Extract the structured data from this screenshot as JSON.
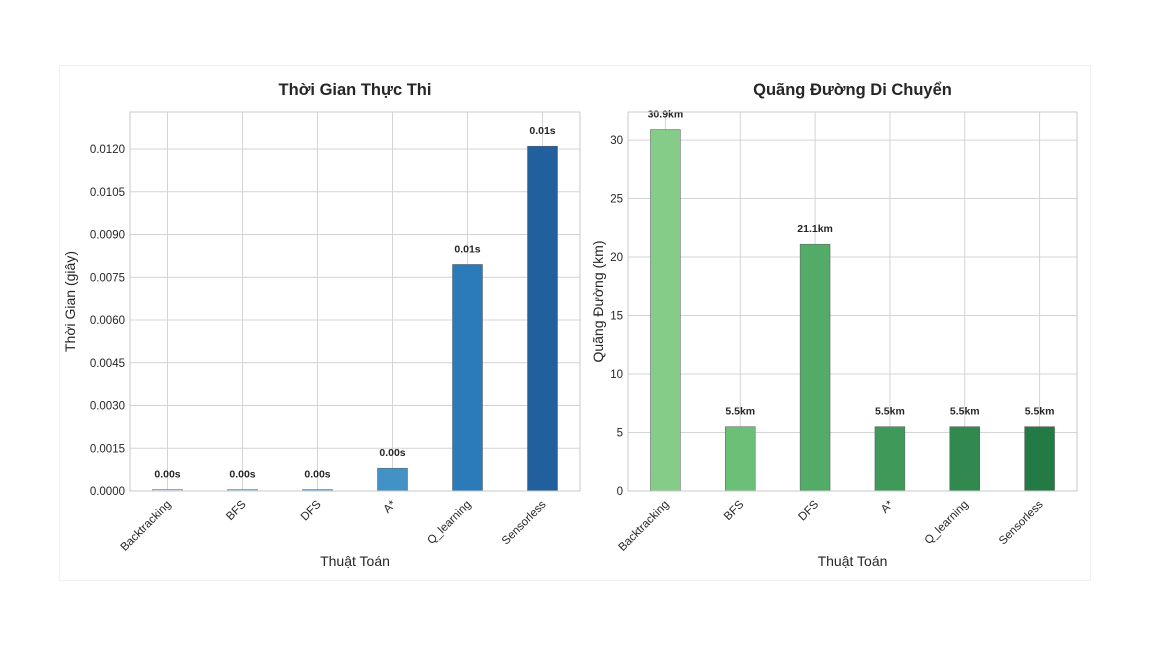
{
  "chart_data": [
    {
      "type": "bar",
      "title": "Thời Gian Thực Thi",
      "xlabel": "Thuật Toán",
      "ylabel": "Thời Gian (giây)",
      "categories": [
        "Backtracking",
        "BFS",
        "DFS",
        "A*",
        "Q_learning",
        "Sensorless"
      ],
      "values": [
        5e-05,
        5e-05,
        5e-05,
        0.0008,
        0.00795,
        0.0121
      ],
      "data_labels": [
        "0.00s",
        "0.00s",
        "0.00s",
        "0.00s",
        "0.01s",
        "0.01s"
      ],
      "yticks": [
        "0.0000",
        "0.0015",
        "0.0030",
        "0.0045",
        "0.0060",
        "0.0075",
        "0.0090",
        "0.0105",
        "0.0120"
      ],
      "ytick_values": [
        0,
        0.0015,
        0.003,
        0.0045,
        0.006,
        0.0075,
        0.009,
        0.0105,
        0.012
      ],
      "ylim": [
        0,
        0.0133
      ],
      "grid": true,
      "colors": [
        "#c6dbef",
        "#9ecae1",
        "#6baed6",
        "#4292c6",
        "#2b7bba",
        "#225f9d"
      ]
    },
    {
      "type": "bar",
      "title": "Quãng Đường Di Chuyển",
      "xlabel": "Thuật Toán",
      "ylabel": "Quãng Đường (km)",
      "categories": [
        "Backtracking",
        "BFS",
        "DFS",
        "A*",
        "Q_learning",
        "Sensorless"
      ],
      "values": [
        30.9,
        5.5,
        21.1,
        5.5,
        5.5,
        5.5
      ],
      "data_labels": [
        "30.9km",
        "5.5km",
        "21.1km",
        "5.5km",
        "5.5km",
        "5.5km"
      ],
      "yticks": [
        "0",
        "5",
        "10",
        "15",
        "20",
        "25",
        "30"
      ],
      "ytick_values": [
        0,
        5,
        10,
        15,
        20,
        25,
        30
      ],
      "ylim": [
        0,
        32.4
      ],
      "grid": true,
      "colors": [
        "#85cc88",
        "#6bbf76",
        "#52ab67",
        "#3f9a5a",
        "#31894f",
        "#237a45"
      ]
    }
  ]
}
